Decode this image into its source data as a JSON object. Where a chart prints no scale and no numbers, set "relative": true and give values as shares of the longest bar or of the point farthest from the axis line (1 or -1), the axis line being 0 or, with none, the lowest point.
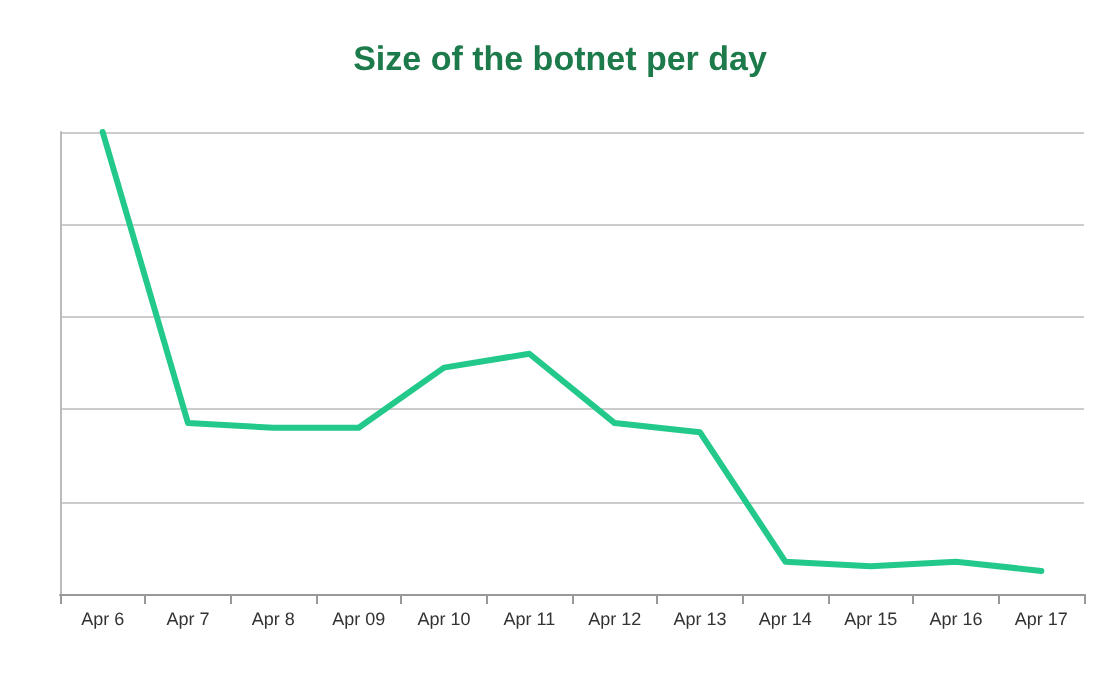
{
  "chart_data": {
    "type": "line",
    "title": "Size of the botnet per day",
    "relative": true,
    "grid": "y",
    "marker": "none",
    "line_style": "solid",
    "categories": [
      "Apr 6",
      "Apr 7",
      "Apr 8",
      "Apr 09",
      "Apr 10",
      "Apr 11",
      "Apr 12",
      "Apr 13",
      "Apr 14",
      "Apr 15",
      "Apr 16",
      "Apr 17"
    ],
    "series": [
      {
        "color": "#22c98a",
        "values": [
          1,
          0.37,
          0.36,
          0.36,
          0.49,
          0.52,
          0.37,
          0.35,
          0.07,
          0.06,
          0.07,
          0.05
        ]
      }
    ]
  }
}
